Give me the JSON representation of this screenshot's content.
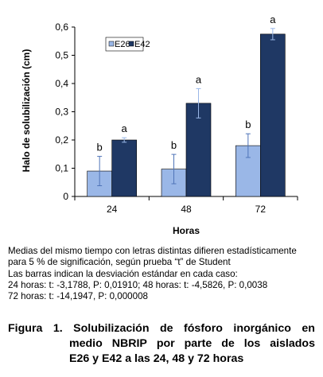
{
  "chart_data": {
    "type": "bar",
    "categories": [
      "24",
      "48",
      "72"
    ],
    "series": [
      {
        "name": "E26",
        "color": "#9ab7e7",
        "values": [
          0.09,
          0.097,
          0.18
        ],
        "errors": [
          0.052,
          0.052,
          0.042
        ],
        "letters": [
          "b",
          "b",
          "b"
        ]
      },
      {
        "name": "E42",
        "color": "#1f3864",
        "values": [
          0.2,
          0.33,
          0.575
        ],
        "errors": [
          0.008,
          0.052,
          0.02
        ],
        "letters": [
          "a",
          "a",
          "a"
        ]
      }
    ],
    "xlabel": "Horas",
    "ylabel": "Halo de solubilización (cm)",
    "ylim": [
      0,
      0.6
    ],
    "yticks": [
      "0",
      "0,1",
      "0,2",
      "0,3",
      "0,4",
      "0,5",
      "0,6"
    ],
    "legend_position": "top-left",
    "grid": false
  },
  "notes": [
    "Medias del mismo tiempo con letras distintas difieren estadísticamente",
    "para 5 % de significación, según prueba “t” de Student",
    "Las barras indican la desviación estándar en cada caso:",
    "24 horas: t: -3,1788, P: 0,01910; 48 horas: t: -4,5826, P: 0,0038",
    "72 horas: t: -14,1947, P: 0,000008"
  ],
  "caption": {
    "line1_words": [
      "Figura",
      "1.",
      "Solubilización",
      "de",
      "fósforo",
      "inorgánico",
      "en"
    ],
    "line2_words": [
      "medio",
      "NBRIP",
      "por",
      "parte",
      "de",
      "los",
      "aislados"
    ],
    "line3": "E26 y E42 a las 24, 48 y 72 horas"
  }
}
